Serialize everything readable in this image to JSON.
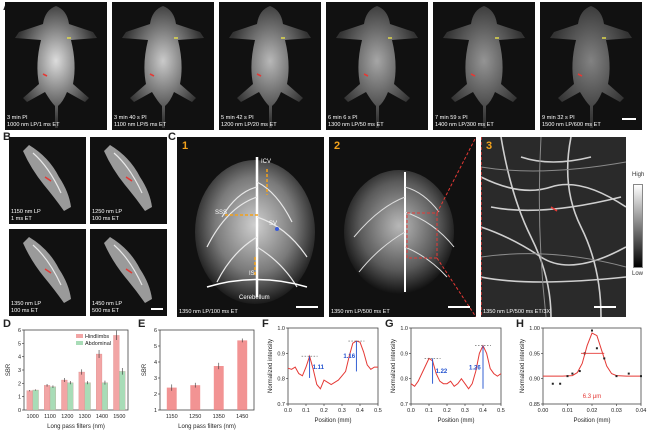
{
  "panels": {
    "A": "A",
    "B": "B",
    "C": "C",
    "D": "D",
    "E": "E",
    "F": "F",
    "G": "G",
    "H": "H"
  },
  "a_frames": [
    {
      "time": "3 min PI",
      "setting": "1000 nm  LP/1 ms ET"
    },
    {
      "time": "3 min 40 s PI",
      "setting": "1100 nm LP/5 ms ET"
    },
    {
      "time": "5 min 42 s PI",
      "setting": "1200 nm LP/20 ms ET"
    },
    {
      "time": "6 min 6 s PI",
      "setting": "1300 nm LP/50 ms ET"
    },
    {
      "time": "7 min 59 s PI",
      "setting": "1400 nm LP/300 ms ET"
    },
    {
      "time": "9 min 32 s PI",
      "setting": "1500 nm LP/600 ms ET"
    }
  ],
  "b_frames": [
    {
      "lp": "1150 nm LP",
      "et": "1 ms ET"
    },
    {
      "lp": "1250 nm LP",
      "et": "100 ms ET"
    },
    {
      "lp": "1350 nm LP",
      "et": "100 ms ET"
    },
    {
      "lp": "1450 nm LP",
      "et": "500 ms ET"
    }
  ],
  "c_frames": [
    {
      "num": "1",
      "caption": "1350 nm LP/100 ms ET",
      "labels": {
        "icv": "ICV",
        "sss": "SSS",
        "sv": "SV",
        "is": "IS",
        "cerebellum": "Cerebellum"
      }
    },
    {
      "num": "2",
      "caption": "1350 nm LP/500 ms ET"
    },
    {
      "num": "3",
      "caption": "1350 nm LP/500 ms ET/3X"
    }
  ],
  "colorbar": {
    "high": "High",
    "low": "Low"
  },
  "chart_data": [
    {
      "panel": "D",
      "type": "bar",
      "categories": [
        "1000",
        "1100",
        "1200",
        "1300",
        "1400",
        "1500"
      ],
      "series": [
        {
          "name": "Hindlimbs",
          "values": [
            1.45,
            1.85,
            2.25,
            2.85,
            4.2,
            5.6
          ],
          "errors": [
            0.05,
            0.1,
            0.15,
            0.2,
            0.3,
            0.35
          ]
        },
        {
          "name": "Abdominal",
          "values": [
            1.5,
            1.75,
            2.05,
            2.05,
            2.05,
            2.9
          ],
          "errors": [
            0.05,
            0.1,
            0.12,
            0.12,
            0.15,
            0.25
          ]
        }
      ],
      "xlabel": "Long pass filters (nm)",
      "ylabel": "SBR",
      "ylim": [
        0,
        6
      ],
      "yticks": [
        "0",
        "1",
        "2",
        "3",
        "4",
        "5",
        "6"
      ],
      "colors": {
        "Hindlimbs": "#f2a5a5",
        "Abdominal": "#a8dcb7"
      }
    },
    {
      "panel": "E",
      "type": "bar",
      "categories": [
        "1150",
        "1250",
        "1350",
        "1450"
      ],
      "values": [
        2.4,
        2.55,
        3.75,
        5.35
      ],
      "errors": [
        0.2,
        0.15,
        0.2,
        0.12
      ],
      "xlabel": "Long pass filters (nm)",
      "ylabel": "SBR",
      "ylim": [
        1,
        6
      ],
      "yticks": [
        "1",
        "2",
        "3",
        "4",
        "5",
        "6"
      ],
      "color": "#f08080"
    },
    {
      "panel": "F",
      "type": "line",
      "x": [
        0.0,
        0.02,
        0.04,
        0.06,
        0.08,
        0.1,
        0.12,
        0.14,
        0.16,
        0.18,
        0.2,
        0.22,
        0.24,
        0.26,
        0.28,
        0.3,
        0.32,
        0.34,
        0.36,
        0.38,
        0.4,
        0.42,
        0.44,
        0.46,
        0.48,
        0.5
      ],
      "y": [
        0.865,
        0.86,
        0.87,
        0.84,
        0.83,
        0.87,
        0.92,
        0.86,
        0.79,
        0.77,
        0.81,
        0.8,
        0.79,
        0.8,
        0.81,
        0.83,
        0.85,
        0.92,
        0.98,
        0.99,
        0.985,
        0.94,
        0.88,
        0.86,
        0.87,
        0.87
      ],
      "annotations": [
        "1.11",
        "1.16"
      ],
      "xlabel": "Position (mm)",
      "ylabel": "Normalized intensity",
      "xlim": [
        0,
        0.5
      ],
      "ylim": [
        0.7,
        1.05
      ],
      "xticks": [
        "0.0",
        "0.1",
        "0.2",
        "0.3",
        "0.4",
        "0.5"
      ],
      "yticks": [
        "0.7",
        "0.8",
        "0.9",
        "1.0"
      ]
    },
    {
      "panel": "G",
      "type": "line",
      "x": [
        0.0,
        0.02,
        0.04,
        0.06,
        0.08,
        0.1,
        0.12,
        0.14,
        0.16,
        0.18,
        0.2,
        0.22,
        0.24,
        0.26,
        0.28,
        0.3,
        0.32,
        0.34,
        0.36,
        0.38,
        0.4,
        0.42,
        0.44,
        0.46,
        0.48,
        0.5
      ],
      "y": [
        0.78,
        0.77,
        0.79,
        0.82,
        0.85,
        0.88,
        0.87,
        0.82,
        0.79,
        0.78,
        0.78,
        0.79,
        0.77,
        0.78,
        0.8,
        0.78,
        0.76,
        0.78,
        0.83,
        0.9,
        0.93,
        0.9,
        0.84,
        0.82,
        0.81,
        0.82
      ],
      "annotations": [
        "1.22",
        "1.26"
      ],
      "xlabel": "Position (mm)",
      "ylabel": "Normalized intensity",
      "xlim": [
        0,
        0.5
      ],
      "ylim": [
        0.7,
        1.0
      ],
      "xticks": [
        "0.0",
        "0.1",
        "0.2",
        "0.3",
        "0.4",
        "0.5"
      ],
      "yticks": [
        "0.7",
        "0.8",
        "0.9",
        "1.0"
      ]
    },
    {
      "panel": "H",
      "type": "scatter",
      "points_x": [
        0.004,
        0.007,
        0.01,
        0.012,
        0.015,
        0.017,
        0.02,
        0.022,
        0.025,
        0.03,
        0.035,
        0.04
      ],
      "points_y": [
        0.89,
        0.89,
        0.905,
        0.91,
        0.915,
        0.95,
        0.995,
        0.96,
        0.94,
        0.905,
        0.91,
        0.905
      ],
      "fit_x": [
        0.0,
        0.004,
        0.008,
        0.012,
        0.014,
        0.016,
        0.018,
        0.02,
        0.022,
        0.024,
        0.026,
        0.028,
        0.03,
        0.034,
        0.038,
        0.04
      ],
      "fit_y": [
        0.905,
        0.905,
        0.905,
        0.906,
        0.912,
        0.93,
        0.965,
        0.99,
        0.985,
        0.955,
        0.925,
        0.91,
        0.906,
        0.905,
        0.905,
        0.905
      ],
      "annotations": [
        "6.3 μm"
      ],
      "xlabel": "Position (mm)",
      "ylabel": "Normalized intensity",
      "xlim": [
        0,
        0.04
      ],
      "ylim": [
        0.85,
        1.0
      ],
      "xticks": [
        "0.00",
        "0.01",
        "0.02",
        "0.03",
        "0.04"
      ],
      "yticks": [
        "0.85",
        "0.90",
        "0.95",
        "1.00"
      ]
    }
  ]
}
